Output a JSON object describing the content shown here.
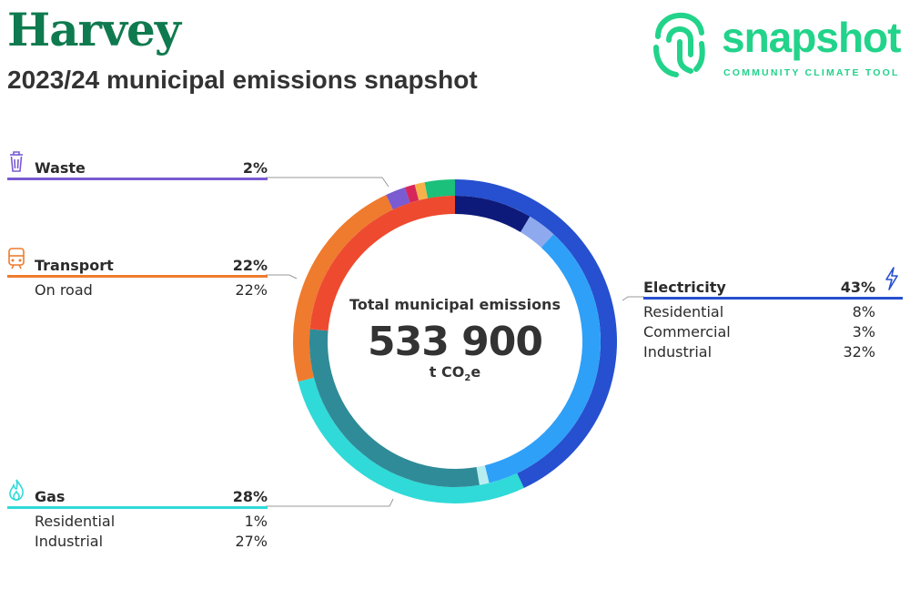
{
  "header": {
    "title": "Harvey",
    "subtitle": "2023/24 municipal emissions snapshot"
  },
  "logo": {
    "word": "snapshot",
    "tagline": "COMMUNITY CLIMATE TOOL",
    "icon": "fingerprint-icon",
    "color": "#22d38a"
  },
  "total": {
    "label": "Total municipal emissions",
    "value": "533 900",
    "unit_prefix": "t CO",
    "unit_sub": "2",
    "unit_suffix": "e"
  },
  "sectors": {
    "waste": {
      "name": "Waste",
      "pct": "2%",
      "icon": "trash-bin-icon",
      "color": "#7a5bd1",
      "subs": []
    },
    "transport": {
      "name": "Transport",
      "pct": "22%",
      "icon": "train-icon",
      "color": "#ef7b2e",
      "subs": [
        {
          "label": "On road",
          "pct": "22%"
        }
      ]
    },
    "gas": {
      "name": "Gas",
      "pct": "28%",
      "icon": "flame-icon",
      "color": "#2fdad8",
      "subs": [
        {
          "label": "Residential",
          "pct": "1%"
        },
        {
          "label": "Industrial",
          "pct": "27%"
        }
      ]
    },
    "electricity": {
      "name": "Electricity",
      "pct": "43%",
      "icon": "lightning-icon",
      "color": "#2650cf",
      "subs": [
        {
          "label": "Residential",
          "pct": "8%"
        },
        {
          "label": "Commercial",
          "pct": "3%"
        },
        {
          "label": "Industrial",
          "pct": "32%"
        }
      ]
    }
  },
  "chart_data": {
    "type": "pie",
    "title": "",
    "outer_ring": [
      {
        "name": "Electricity",
        "value": 43,
        "color": "#2650cf"
      },
      {
        "name": "Gas",
        "value": 28,
        "color": "#2fdad8"
      },
      {
        "name": "Transport",
        "value": 22,
        "color": "#ef7b2e"
      },
      {
        "name": "Waste",
        "value": 2,
        "color": "#7a5bd1"
      },
      {
        "name": "",
        "value": 1,
        "color": "#d6265a"
      },
      {
        "name": "",
        "value": 1,
        "color": "#f6b24a"
      },
      {
        "name": "",
        "value": 3,
        "color": "#1bc07a"
      }
    ],
    "inner_ring": [
      {
        "name": "Residential",
        "value": 8,
        "color": "#0d1a7a"
      },
      {
        "name": "Commercial",
        "value": 3,
        "color": "#8fa9ef"
      },
      {
        "name": "Industrial",
        "value": 32,
        "color": "#2ea0f8"
      },
      {
        "name": "Residential",
        "value": 1,
        "color": "#b8eef0"
      },
      {
        "name": "Industrial",
        "value": 27,
        "color": "#2f8b98"
      },
      {
        "name": "On road",
        "value": 22,
        "color": "#ee4a30"
      }
    ]
  }
}
